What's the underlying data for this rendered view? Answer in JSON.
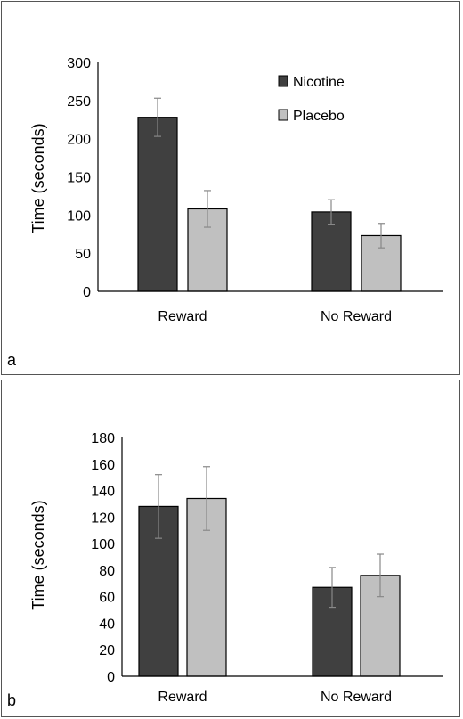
{
  "chart_data": [
    {
      "type": "bar",
      "panel_label": "a",
      "categories": [
        "Reward",
        "No Reward"
      ],
      "series": [
        {
          "name": "Nicotine",
          "color": "#404040",
          "values": [
            228,
            104
          ],
          "errors": [
            25,
            16
          ]
        },
        {
          "name": "Placebo",
          "color": "#c0c0c0",
          "values": [
            108,
            73
          ],
          "errors": [
            24,
            16
          ]
        }
      ],
      "ylabel": "Time  (seconds)",
      "ylim": [
        0,
        300
      ],
      "yticks": [
        "0",
        "50",
        "100",
        "150",
        "200",
        "250",
        "300"
      ],
      "legend": "top-right",
      "grid": false
    },
    {
      "type": "bar",
      "panel_label": "b",
      "categories": [
        "Reward",
        "No Reward"
      ],
      "series": [
        {
          "name": "Nicotine",
          "color": "#404040",
          "values": [
            128,
            67
          ],
          "errors": [
            24,
            15
          ]
        },
        {
          "name": "Placebo",
          "color": "#c0c0c0",
          "values": [
            134,
            76
          ],
          "errors": [
            24,
            16
          ]
        }
      ],
      "ylabel": "Time (seconds)",
      "ylim": [
        0,
        180
      ],
      "yticks": [
        "0",
        "20",
        "40",
        "60",
        "80",
        "100",
        "120",
        "140",
        "160",
        "180"
      ],
      "legend": "none",
      "grid": false
    }
  ]
}
